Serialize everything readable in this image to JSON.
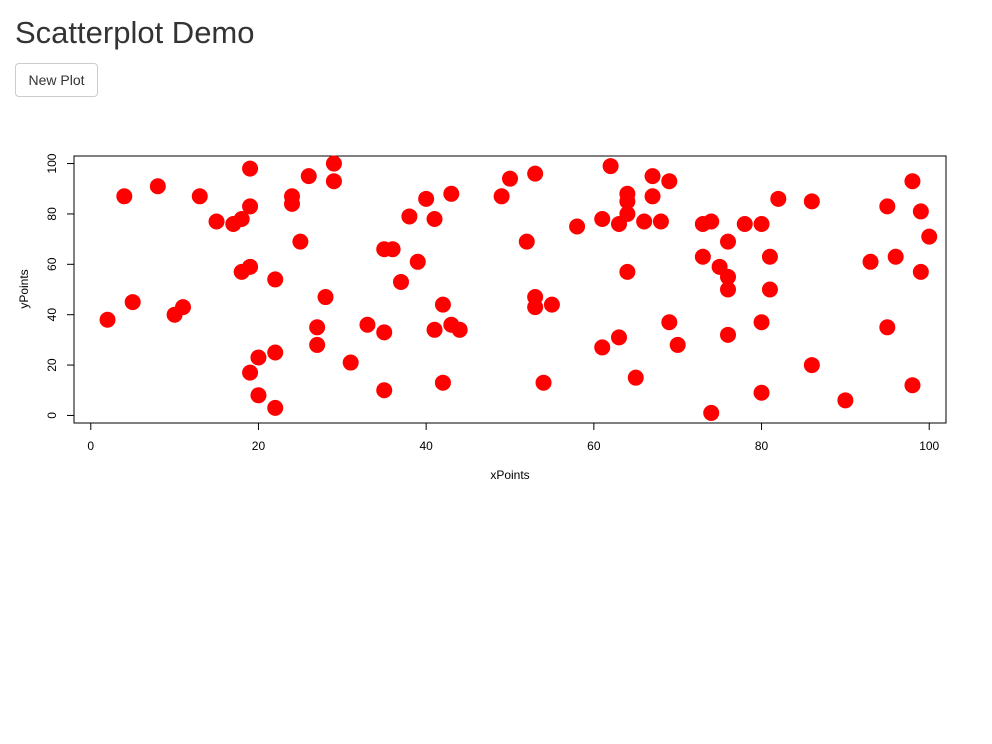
{
  "page": {
    "title": "Scatterplot Demo"
  },
  "controls": {
    "new_plot_label": "New Plot"
  },
  "chart_data": {
    "type": "scatter",
    "xlabel": "xPoints",
    "ylabel": "yPoints",
    "xlim": [
      -2,
      102
    ],
    "ylim": [
      -3,
      103
    ],
    "xticks": [
      0,
      20,
      40,
      60,
      80,
      100
    ],
    "yticks": [
      0,
      20,
      40,
      60,
      80,
      100
    ],
    "grid": false,
    "marker_color": "#ff0000",
    "points": [
      [
        2,
        38
      ],
      [
        4,
        87
      ],
      [
        5,
        45
      ],
      [
        8,
        91
      ],
      [
        10,
        40
      ],
      [
        11,
        43
      ],
      [
        13,
        87
      ],
      [
        15,
        77
      ],
      [
        17,
        76
      ],
      [
        18,
        78
      ],
      [
        18,
        57
      ],
      [
        19,
        59
      ],
      [
        19,
        83
      ],
      [
        19,
        98
      ],
      [
        19,
        17
      ],
      [
        20,
        23
      ],
      [
        20,
        8
      ],
      [
        22,
        25
      ],
      [
        22,
        3
      ],
      [
        22,
        54
      ],
      [
        24,
        87
      ],
      [
        24,
        84
      ],
      [
        25,
        69
      ],
      [
        26,
        95
      ],
      [
        27,
        35
      ],
      [
        27,
        28
      ],
      [
        28,
        47
      ],
      [
        29,
        100
      ],
      [
        29,
        93
      ],
      [
        31,
        21
      ],
      [
        33,
        36
      ],
      [
        35,
        66
      ],
      [
        35,
        33
      ],
      [
        35,
        10
      ],
      [
        36,
        66
      ],
      [
        37,
        53
      ],
      [
        38,
        79
      ],
      [
        39,
        61
      ],
      [
        40,
        86
      ],
      [
        41,
        78
      ],
      [
        41,
        34
      ],
      [
        42,
        44
      ],
      [
        42,
        13
      ],
      [
        43,
        88
      ],
      [
        43,
        36
      ],
      [
        44,
        34
      ],
      [
        49,
        87
      ],
      [
        50,
        94
      ],
      [
        52,
        69
      ],
      [
        53,
        96
      ],
      [
        53,
        47
      ],
      [
        53,
        43
      ],
      [
        54,
        13
      ],
      [
        55,
        44
      ],
      [
        58,
        75
      ],
      [
        61,
        78
      ],
      [
        61,
        27
      ],
      [
        62,
        99
      ],
      [
        63,
        76
      ],
      [
        63,
        31
      ],
      [
        64,
        88
      ],
      [
        64,
        85
      ],
      [
        64,
        80
      ],
      [
        64,
        57
      ],
      [
        65,
        15
      ],
      [
        66,
        77
      ],
      [
        67,
        95
      ],
      [
        67,
        87
      ],
      [
        68,
        77
      ],
      [
        69,
        93
      ],
      [
        69,
        37
      ],
      [
        70,
        28
      ],
      [
        73,
        76
      ],
      [
        73,
        63
      ],
      [
        74,
        77
      ],
      [
        74,
        1
      ],
      [
        75,
        59
      ],
      [
        76,
        55
      ],
      [
        76,
        50
      ],
      [
        76,
        69
      ],
      [
        76,
        32
      ],
      [
        78,
        76
      ],
      [
        80,
        76
      ],
      [
        80,
        37
      ],
      [
        80,
        9
      ],
      [
        81,
        63
      ],
      [
        81,
        50
      ],
      [
        82,
        86
      ],
      [
        86,
        85
      ],
      [
        86,
        20
      ],
      [
        90,
        6
      ],
      [
        93,
        61
      ],
      [
        95,
        83
      ],
      [
        95,
        35
      ],
      [
        96,
        63
      ],
      [
        98,
        93
      ],
      [
        98,
        12
      ],
      [
        99,
        81
      ],
      [
        99,
        57
      ],
      [
        100,
        71
      ]
    ]
  }
}
